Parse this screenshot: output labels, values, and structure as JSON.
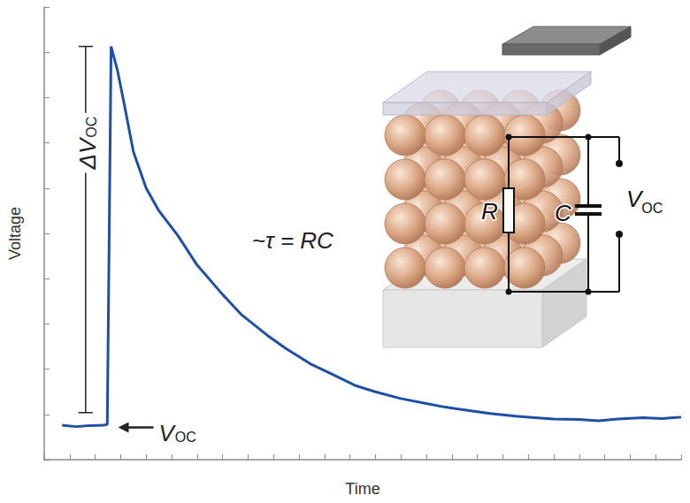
{
  "chart_data": {
    "type": "line",
    "x_label": "Time",
    "y_label": "Voltage",
    "x": [
      2.8,
      5,
      7,
      9.3,
      9.9,
      10.5,
      11.5,
      12.5,
      14,
      16,
      18,
      21,
      24,
      28,
      31,
      35,
      38,
      42,
      45,
      49,
      52,
      56,
      60,
      63,
      67,
      70,
      74,
      77,
      80,
      84,
      87,
      90,
      94,
      97,
      100
    ],
    "values": [
      7.6,
      7.3,
      7.5,
      7.6,
      7.8,
      91.3,
      86,
      79,
      68,
      60,
      55,
      49.5,
      43,
      36.5,
      32,
      27.5,
      24.5,
      21,
      19,
      16.3,
      15,
      13.5,
      12.4,
      11.6,
      10.8,
      10.2,
      9.6,
      9.3,
      9,
      8.9,
      8.6,
      9,
      9.3,
      9.1,
      9.4
    ],
    "color": "#1f4fa3",
    "xlim": [
      0,
      100
    ],
    "ylim": [
      0,
      100
    ],
    "xticks": [
      0,
      4,
      8,
      12,
      16,
      20,
      24,
      28,
      32,
      36,
      40,
      44,
      48,
      52,
      56,
      60,
      64,
      68,
      72,
      76,
      80,
      84,
      88,
      92,
      96,
      100
    ],
    "yticks": [
      0,
      10,
      20,
      30,
      40,
      50,
      60,
      70,
      80,
      90,
      100
    ],
    "tick_labels": false,
    "grid": false,
    "annotations": [
      {
        "text": "ΔV",
        "sub": "OC"
      },
      {
        "text": "~τ = RC"
      },
      {
        "text": "V",
        "sub": "OC"
      },
      {
        "text": "R"
      },
      {
        "text": "C"
      },
      {
        "text": "V",
        "sub": "OC"
      }
    ]
  }
}
